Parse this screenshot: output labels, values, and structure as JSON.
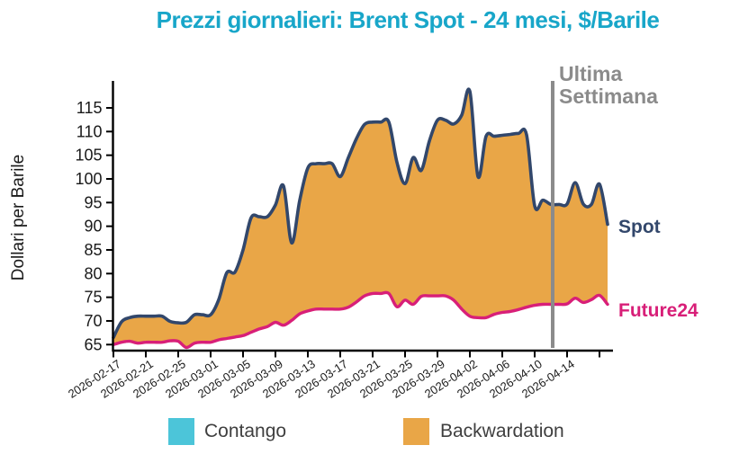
{
  "chart_data": {
    "type": "area",
    "title": "Prezzi giornalieri: Brent Spot - 24 mesi, $/Barile",
    "ylabel": "Dollari per Barile",
    "ylim": [
      63.7,
      120.7
    ],
    "yticks": [
      65,
      70,
      75,
      80,
      85,
      90,
      95,
      100,
      105,
      110,
      115
    ],
    "xtick_step_days": 4,
    "xtick_labels": [
      "2026-02-17",
      "2026-02-21",
      "2026-02-25",
      "2026-03-01",
      "2026-03-05",
      "2026-03-09",
      "2026-03-13",
      "2026-03-17",
      "2026-03-21",
      "2026-03-25",
      "2026-03-29",
      "2026-04-02",
      "2026-04-06",
      "2026-04-10",
      "2026-04-14"
    ],
    "x": [
      "2026-02-17",
      "2026-02-18",
      "2026-02-19",
      "2026-02-20",
      "2026-02-21",
      "2026-02-22",
      "2026-02-23",
      "2026-02-24",
      "2026-02-25",
      "2026-02-26",
      "2026-02-27",
      "2026-02-28",
      "2026-03-01",
      "2026-03-02",
      "2026-03-03",
      "2026-03-04",
      "2026-03-05",
      "2026-03-06",
      "2026-03-07",
      "2026-03-08",
      "2026-03-09",
      "2026-03-10",
      "2026-03-11",
      "2026-03-12",
      "2026-03-13",
      "2026-03-14",
      "2026-03-15",
      "2026-03-16",
      "2026-03-17",
      "2026-03-18",
      "2026-03-19",
      "2026-03-20",
      "2026-03-21",
      "2026-03-22",
      "2026-03-23",
      "2026-03-24",
      "2026-03-25",
      "2026-03-26",
      "2026-03-27",
      "2026-03-28",
      "2026-03-29",
      "2026-03-30",
      "2026-03-31",
      "2026-04-01",
      "2026-04-02",
      "2026-04-03",
      "2026-04-04",
      "2026-04-05",
      "2026-04-06",
      "2026-04-07",
      "2026-04-08",
      "2026-04-09",
      "2026-04-10",
      "2026-04-11",
      "2026-04-12",
      "2026-04-13",
      "2026-04-14",
      "2026-04-15",
      "2026-04-16",
      "2026-04-17",
      "2026-04-18",
      "2026-04-19"
    ],
    "series": [
      {
        "name": "Spot",
        "color": "#32476b",
        "values": [
          66.5,
          69.8,
          70.7,
          71.0,
          71.0,
          71.0,
          71.0,
          69.9,
          69.6,
          69.7,
          71.3,
          71.3,
          71.3,
          74.5,
          80.2,
          80.3,
          85.0,
          91.8,
          92.0,
          92.0,
          94.5,
          98.5,
          86.5,
          95.5,
          102.3,
          103.2,
          103.2,
          103.2,
          100.5,
          104.5,
          108.5,
          111.5,
          112.0,
          112.0,
          112.0,
          103.5,
          99.0,
          104.5,
          101.8,
          108.0,
          112.4,
          112.4,
          111.6,
          113.5,
          118.5,
          100.5,
          109.0,
          109.0,
          109.2,
          109.4,
          109.6,
          109.3,
          94.3,
          95.5,
          94.6,
          94.6,
          94.7,
          99.2,
          94.7,
          94.6,
          98.9,
          90.4
        ]
      },
      {
        "name": "Future24",
        "color": "#d81f78",
        "values": [
          65.0,
          65.5,
          65.7,
          65.3,
          65.5,
          65.5,
          65.5,
          65.8,
          65.7,
          64.4,
          65.3,
          65.5,
          65.5,
          66.0,
          66.3,
          66.6,
          66.9,
          67.6,
          68.3,
          68.8,
          69.7,
          69.1,
          70.1,
          71.5,
          72.1,
          72.5,
          72.5,
          72.5,
          72.5,
          72.9,
          74.0,
          75.3,
          75.8,
          75.8,
          75.8,
          73.0,
          74.4,
          73.5,
          75.2,
          75.3,
          75.3,
          75.3,
          74.4,
          72.5,
          71.0,
          70.7,
          70.7,
          71.4,
          71.8,
          72.0,
          72.4,
          72.9,
          73.3,
          73.5,
          73.5,
          73.5,
          73.6,
          74.8,
          73.9,
          74.5,
          75.4,
          73.5
        ]
      }
    ],
    "fill_between": {
      "label": "Backwardation",
      "color": "#e9a647"
    },
    "marker_line": {
      "label": "Ultima Settimana",
      "x": "2026-04-12"
    }
  },
  "annotations": {
    "last_week_line1": "Ultima",
    "last_week_line2": "Settimana",
    "spot": "Spot",
    "future24": "Future24"
  },
  "legend": {
    "items": [
      {
        "label": "Contango",
        "color": "#4cc5d9"
      },
      {
        "label": "Backwardation",
        "color": "#e9a647"
      }
    ]
  },
  "colors": {
    "title": "#18a6c9",
    "marker_line": "#8b8b8b",
    "axis": "#000000",
    "tick_label": "#1a1a1a",
    "legend_text": "#3f3f3f"
  }
}
